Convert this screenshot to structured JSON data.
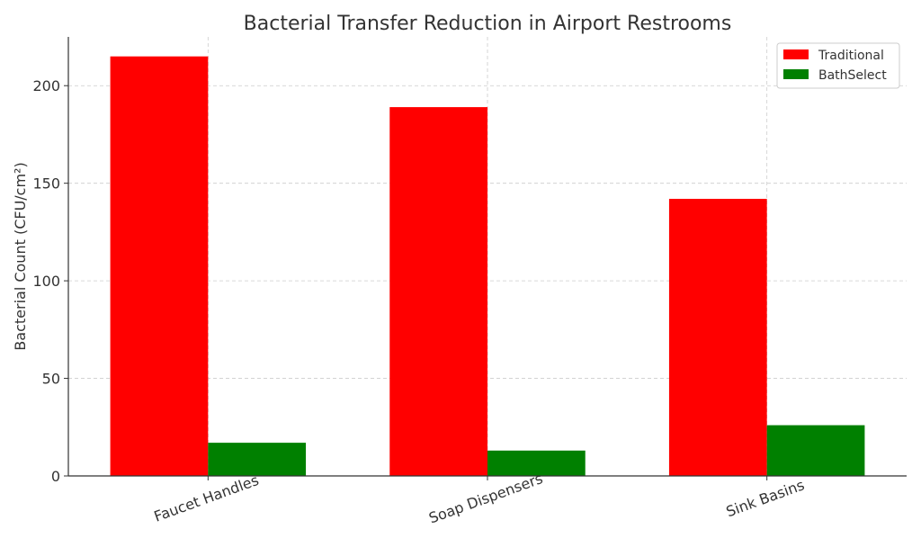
{
  "chart_data": {
    "type": "bar",
    "title": "Bacterial Transfer Reduction in Airport Restrooms",
    "xlabel": "",
    "ylabel": "Bacterial Count (CFU/cm²)",
    "categories": [
      "Faucet Handles",
      "Soap Dispensers",
      "Sink Basins"
    ],
    "series": [
      {
        "name": "Traditional",
        "values": [
          215,
          189,
          142
        ],
        "color": "#ff0000"
      },
      {
        "name": "BathSelect",
        "values": [
          17,
          13,
          26
        ],
        "color": "#008000"
      }
    ],
    "ylim": [
      0,
      225
    ],
    "yticks": [
      0,
      50,
      100,
      150,
      200
    ],
    "grid": true,
    "legend_position": "top-right"
  }
}
